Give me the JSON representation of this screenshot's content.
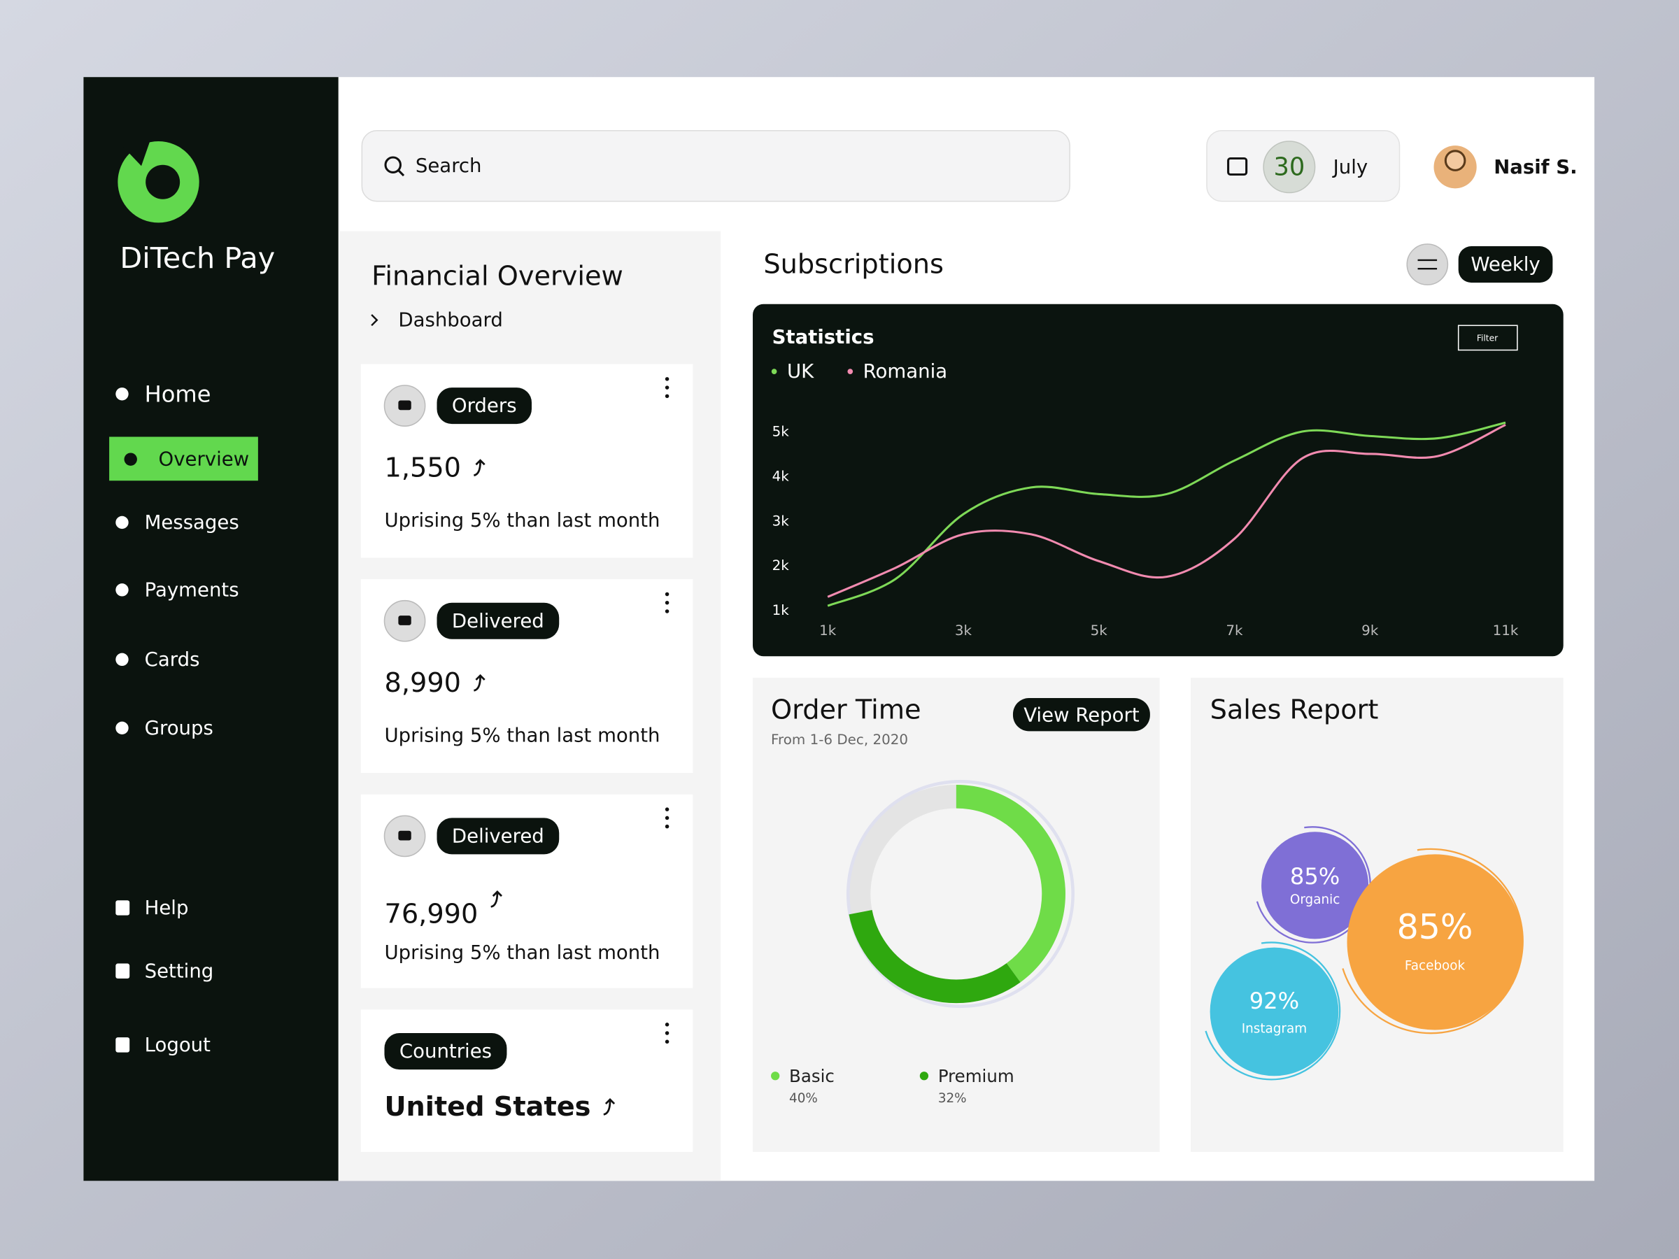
{
  "sidebar": {
    "brand": "DiTech Pay",
    "nav": [
      "Home",
      "Overview",
      "Messages",
      "Payments",
      "Cards",
      "Groups"
    ],
    "footer_nav": [
      "Help",
      "Setting",
      "Logout"
    ]
  },
  "header": {
    "search": "Search",
    "day": "30",
    "month": "July",
    "user": "Nasif S."
  },
  "overview": {
    "title": "Financial Overview",
    "breadcrumb": "Dashboard",
    "cards": [
      {
        "tag": "Orders",
        "value": "1,550",
        "note": "Uprising 5% than last month"
      },
      {
        "tag": "Delivered",
        "value": "8,990",
        "note": "Uprising 5% than last month"
      },
      {
        "tag": "Delivered",
        "value": "76,990",
        "note": "Uprising 5% than last month"
      },
      {
        "tag": "Countries",
        "value": "United States"
      }
    ]
  },
  "subscriptions": {
    "title": "Subscriptions",
    "period": "Weekly"
  },
  "chart_data": [
    {
      "type": "line",
      "title": "Statistics",
      "filter": "Filter",
      "x": [
        1000,
        2000,
        3000,
        4000,
        5000,
        6000,
        7000,
        8000,
        9000,
        10000,
        11000
      ],
      "xlim": [
        1000,
        11000
      ],
      "xticks": [
        {
          "value": 1000,
          "label": "1k"
        },
        {
          "value": 3000,
          "label": "3k"
        },
        {
          "value": 5000,
          "label": "5k"
        },
        {
          "value": 7000,
          "label": "7k"
        },
        {
          "value": 9000,
          "label": "9k"
        },
        {
          "value": 11000,
          "label": "11k"
        }
      ],
      "ylim": [
        800,
        5400
      ],
      "yticks": [
        {
          "value": 1000,
          "label": "1k"
        },
        {
          "value": 2000,
          "label": "2k"
        },
        {
          "value": 3000,
          "label": "3k"
        },
        {
          "value": 4000,
          "label": "4k"
        },
        {
          "value": 5000,
          "label": "5k"
        }
      ],
      "series": [
        {
          "name": "UK",
          "color": "#7ed957",
          "values": [
            1100,
            1700,
            3150,
            3750,
            3600,
            3600,
            4350,
            5000,
            4900,
            4850,
            5200
          ]
        },
        {
          "name": "Romania",
          "color": "#f28bb0",
          "values": [
            1300,
            1950,
            2700,
            2700,
            2100,
            1750,
            2600,
            4400,
            4500,
            4450,
            5150
          ]
        }
      ]
    },
    {
      "type": "pie",
      "title": "Order Time",
      "subtitle": "From 1-6 Dec, 2020",
      "action": "View Report",
      "categories": [
        "Basic",
        "Premium"
      ],
      "values": [
        40,
        32
      ],
      "value_labels": [
        "40%",
        "32%"
      ],
      "colors": [
        "#6fdc48",
        "#2fa80f"
      ]
    },
    {
      "type": "bubble",
      "title": "Sales Report",
      "categories": [
        "Organic",
        "Facebook",
        "Instagram"
      ],
      "values": [
        85,
        85,
        92
      ],
      "value_labels": [
        "85%",
        "85%",
        "92%"
      ],
      "colors": [
        "#7f6fd6",
        "#f7a441",
        "#45c3e0"
      ]
    }
  ]
}
